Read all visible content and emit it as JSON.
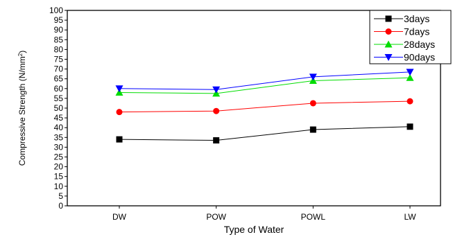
{
  "chart_data": {
    "type": "line",
    "categories": [
      "DW",
      "POW",
      "POWL",
      "LW"
    ],
    "xlabel": "Type of Water",
    "ylabel": "Compressive Strength (N/mm",
    "ylabel_sup": "2",
    "ylabel_end": ")",
    "ylim": [
      0,
      100
    ],
    "ytick_step": 5,
    "legend_position": "top-right",
    "grid": false,
    "series": [
      {
        "name": "3days",
        "color": "#000000",
        "marker": "square",
        "values": [
          34,
          33.5,
          39,
          40.5
        ]
      },
      {
        "name": "7days",
        "color": "#ff0000",
        "marker": "circle",
        "values": [
          48,
          48.5,
          52.5,
          53.5
        ]
      },
      {
        "name": "28days",
        "color": "#00dd00",
        "marker": "triangle-up",
        "values": [
          58,
          57.5,
          64,
          65.5
        ]
      },
      {
        "name": "90days",
        "color": "#0000ff",
        "marker": "triangle-down",
        "values": [
          60,
          59.5,
          66,
          68.5
        ]
      }
    ]
  }
}
